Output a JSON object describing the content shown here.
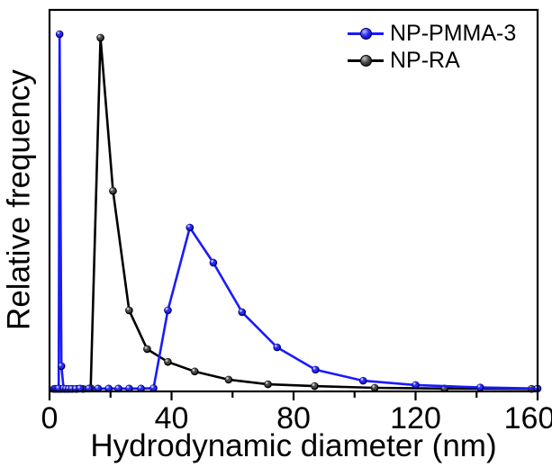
{
  "figure": {
    "background": "#ffffff",
    "axis_color": "#000000"
  },
  "chart_data": {
    "type": "line",
    "title": "",
    "xlabel": "Hydrodynamic diameter (nm)",
    "ylabel": "Relative frequency",
    "xlim": [
      0,
      160
    ],
    "ylim": [
      0,
      1.07
    ],
    "x_ticks": [
      0,
      40,
      80,
      120,
      160
    ],
    "x_minor_ticks": [
      20,
      60,
      100,
      140
    ],
    "y_ticks": [],
    "grid": false,
    "legend_position": "top-right-inside",
    "series": [
      {
        "name": "NP-PMMA-3",
        "color": "#1a1aff",
        "marker": "sphere",
        "marker_colors": {
          "dark": "#000070",
          "mid": "#2a2af8",
          "light": "#aebdff"
        },
        "x": [
          1.5,
          1.8,
          2.2,
          2.6,
          3.0,
          3.3,
          3.9,
          4.6,
          5.4,
          6.3,
          7.3,
          8.6,
          10.0,
          12.9,
          15.9,
          19.4,
          22.6,
          26.1,
          30.0,
          34.1,
          38.8,
          46.0,
          53.7,
          63.1,
          74.6,
          87.2,
          102.8,
          120.0,
          141.2,
          160.0
        ],
        "y": [
          0.002,
          0.002,
          0.002,
          0.002,
          0.003,
          1.0,
          0.066,
          0.003,
          0.002,
          0.002,
          0.002,
          0.002,
          0.003,
          0.003,
          0.003,
          0.003,
          0.003,
          0.003,
          0.003,
          0.004,
          0.223,
          0.456,
          0.357,
          0.218,
          0.119,
          0.056,
          0.025,
          0.013,
          0.006,
          0.003
        ]
      },
      {
        "name": "NP-RA",
        "color": "#000000",
        "marker": "sphere",
        "marker_colors": {
          "dark": "#000000",
          "mid": "#4a4a4a",
          "light": "#c2c2c2"
        },
        "x": [
          1.6,
          1.9,
          2.3,
          2.8,
          3.4,
          4.1,
          5.0,
          6.1,
          7.4,
          9.0,
          11.0,
          13.5,
          16.7,
          20.8,
          26.1,
          32.0,
          38.8,
          47.6,
          58.7,
          71.6,
          86.9,
          106.6,
          129.5,
          158.0
        ],
        "y": [
          0.002,
          0.002,
          0.002,
          0.002,
          0.002,
          0.002,
          0.002,
          0.002,
          0.002,
          0.002,
          0.002,
          0.004,
          0.99,
          0.559,
          0.223,
          0.114,
          0.078,
          0.051,
          0.028,
          0.015,
          0.01,
          0.005,
          0.003,
          0.002
        ]
      }
    ]
  }
}
